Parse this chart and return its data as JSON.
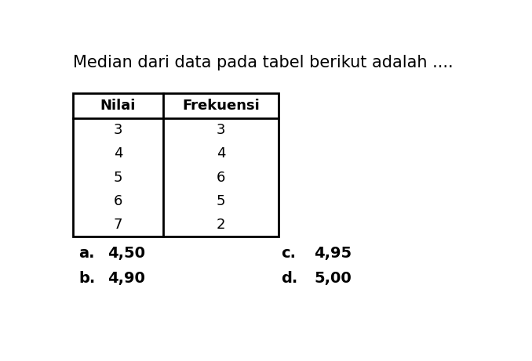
{
  "title": "Median dari data pada tabel berikut adalah ....",
  "col_headers": [
    "Nilai",
    "Frekuensi"
  ],
  "rows": [
    [
      "3",
      "3"
    ],
    [
      "4",
      "4"
    ],
    [
      "5",
      "6"
    ],
    [
      "6",
      "5"
    ],
    [
      "7",
      "2"
    ]
  ],
  "options": [
    [
      "a.",
      "4,50",
      "c.",
      "4,95"
    ],
    [
      "b.",
      "4,90",
      "d.",
      "5,00"
    ]
  ],
  "bg_color": "#ffffff",
  "text_color": "#000000",
  "title_fontsize": 15,
  "header_fontsize": 13,
  "cell_fontsize": 13,
  "option_fontsize": 14
}
